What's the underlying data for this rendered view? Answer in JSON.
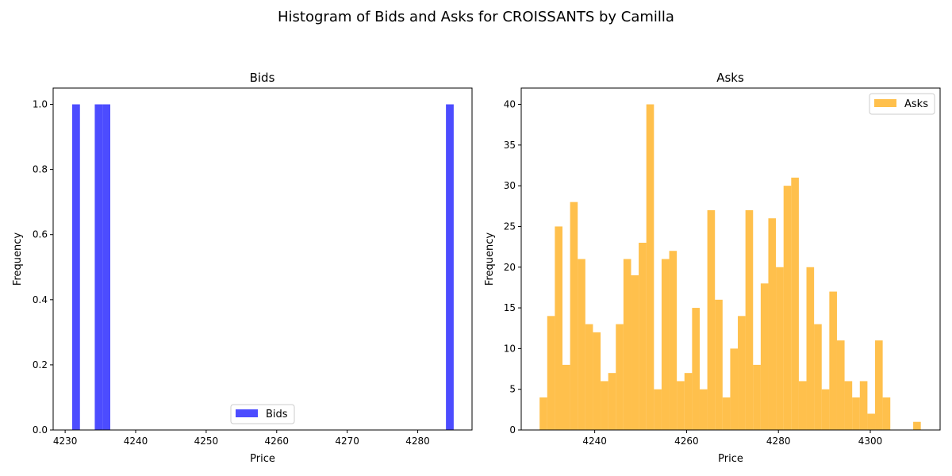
{
  "figure": {
    "title": "Histogram of Bids and Asks for CROISSANTS by Camilla"
  },
  "chart_data": [
    {
      "type": "bar",
      "title": "Bids",
      "xlabel": "Price",
      "ylabel": "Frequency",
      "xlim": [
        4228.3,
        4287.7
      ],
      "ylim": [
        0,
        1.05
      ],
      "xticks": [
        4230,
        4240,
        4250,
        4260,
        4270,
        4280
      ],
      "yticks": [
        0.0,
        0.2,
        0.4,
        0.6,
        0.8,
        1.0
      ],
      "ytick_format": 1,
      "grid": false,
      "legend": "lower center",
      "series": [
        {
          "name": "Bids",
          "color": "#0000ff",
          "opacity": 0.7,
          "bins": [
            {
              "x0": 4231.0,
              "x1": 4232.1,
              "value": 1
            },
            {
              "x0": 4234.2,
              "x1": 4235.3,
              "value": 1
            },
            {
              "x0": 4235.3,
              "x1": 4236.4,
              "value": 1
            },
            {
              "x0": 4284.0,
              "x1": 4285.1,
              "value": 1
            }
          ]
        }
      ]
    },
    {
      "type": "bar",
      "title": "Asks",
      "xlabel": "Price",
      "ylabel": "Frequency",
      "xlim": [
        4224.0,
        4315.2
      ],
      "ylim": [
        0,
        42
      ],
      "xticks": [
        4240,
        4260,
        4280,
        4300
      ],
      "yticks": [
        0,
        5,
        10,
        15,
        20,
        25,
        30,
        35,
        40
      ],
      "ytick_format": 0,
      "grid": false,
      "legend": "upper right",
      "series": [
        {
          "name": "Asks",
          "color": "#ffa500",
          "opacity": 0.7,
          "bin_start": 4228.0,
          "bin_width": 1.66,
          "values": [
            4,
            14,
            25,
            8,
            28,
            21,
            13,
            12,
            6,
            7,
            13,
            21,
            19,
            23,
            40,
            5,
            21,
            22,
            6,
            7,
            15,
            5,
            27,
            16,
            4,
            10,
            14,
            27,
            8,
            18,
            26,
            20,
            30,
            31,
            6,
            20,
            13,
            5,
            17,
            11,
            6,
            4,
            6,
            2,
            11,
            4,
            0,
            0,
            0,
            1
          ]
        }
      ]
    }
  ]
}
